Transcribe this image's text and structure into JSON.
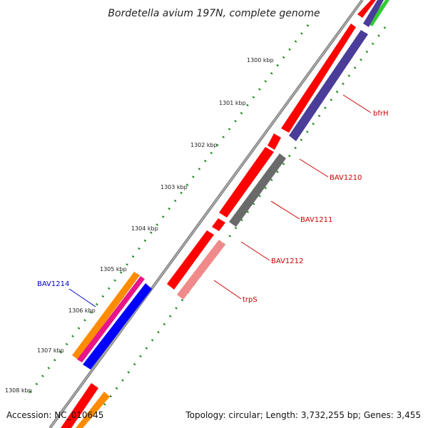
{
  "title": "Bordetella avium 197N, complete genome",
  "footer": {
    "accession": "Accession: NC_010645",
    "summary": "Topology: circular; Length: 3,732,255 bp; Genes: 3,455"
  },
  "ticks": [
    {
      "label": "1300 kbp"
    },
    {
      "label": "1301 kbp"
    },
    {
      "label": "1302 kbp"
    },
    {
      "label": "1303 kbp"
    },
    {
      "label": "1304 kbp"
    },
    {
      "label": "1305 kbp"
    },
    {
      "label": "1306 kbp"
    },
    {
      "label": "1307 kbp"
    },
    {
      "label": "1308 kbp"
    }
  ],
  "gene_labels": [
    {
      "name": "bfrH",
      "color": "#cc0000"
    },
    {
      "name": "BAV1210",
      "color": "#cc0000"
    },
    {
      "name": "BAV1211",
      "color": "#cc0000"
    },
    {
      "name": "BAV1212",
      "color": "#cc0000"
    },
    {
      "name": "trpS",
      "color": "#cc0000"
    },
    {
      "name": "BAV1214",
      "color": "#0000cc"
    }
  ],
  "colors": {
    "backbone": "#8c8c8c",
    "tick_dots": "#1a8a1a",
    "cds_red": "#ff0000",
    "cds_navy": "#4a3d99",
    "cds_gray": "#6a6a6a",
    "cds_pink": "#f08a8a",
    "cds_blue": "#0000ff",
    "cds_orange": "#ff8c00",
    "cds_magenta": "#e8158a",
    "cds_green": "#33cc33"
  }
}
